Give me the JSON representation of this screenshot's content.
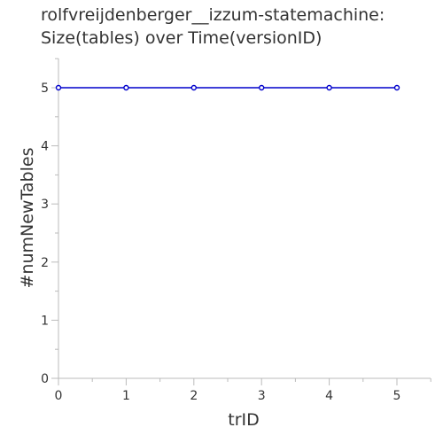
{
  "chart_data": {
    "type": "line",
    "title_lines": [
      "rolfvreijdenberger__izzum-statemachine:",
      "Size(tables) over Time(versionID)"
    ],
    "xlabel": "trID",
    "ylabel": "#numNewTables",
    "x": [
      0,
      1,
      2,
      3,
      4,
      5
    ],
    "series": [
      {
        "values": [
          5,
          5,
          5,
          5,
          5,
          5
        ]
      }
    ],
    "xlim": [
      0,
      5.5
    ],
    "ylim": [
      0,
      5.5
    ],
    "xticks": [
      0,
      1,
      2,
      3,
      4,
      5
    ],
    "yticks": [
      0,
      1,
      2,
      3,
      4,
      5
    ],
    "grid": false,
    "colors": {
      "series": "#0000cc",
      "axis": "#bbbbbb",
      "text": "#333333"
    }
  }
}
